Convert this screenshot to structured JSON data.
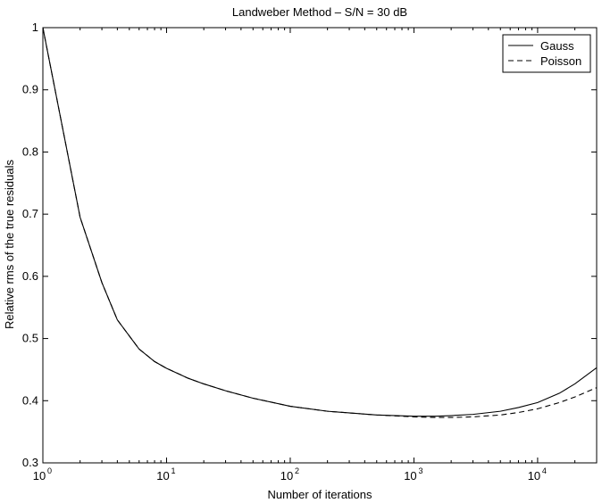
{
  "chart_data": {
    "type": "line",
    "title": "Landweber Method – S/N = 30 dB",
    "xlabel": "Number of iterations",
    "ylabel": "Relative rms of the true residuals",
    "xscale": "log",
    "xlim": [
      1,
      30000
    ],
    "ylim": [
      0.3,
      1.0
    ],
    "xticks": [
      {
        "value": 1,
        "base": "10",
        "exp": "0"
      },
      {
        "value": 10,
        "base": "10",
        "exp": "1"
      },
      {
        "value": 100,
        "base": "10",
        "exp": "2"
      },
      {
        "value": 1000,
        "base": "10",
        "exp": "3"
      },
      {
        "value": 10000,
        "base": "10",
        "exp": "4"
      }
    ],
    "yticks": [
      {
        "value": 0.3,
        "label": "0.3"
      },
      {
        "value": 0.4,
        "label": "0.4"
      },
      {
        "value": 0.5,
        "label": "0.5"
      },
      {
        "value": 0.6,
        "label": "0.6"
      },
      {
        "value": 0.7,
        "label": "0.7"
      },
      {
        "value": 0.8,
        "label": "0.8"
      },
      {
        "value": 0.9,
        "label": "0.9"
      },
      {
        "value": 1.0,
        "label": "1"
      }
    ],
    "grid": false,
    "legend_position": "top-right",
    "series": [
      {
        "name": "Gauss",
        "style": "solid",
        "x": [
          1,
          2,
          3,
          4,
          6,
          8,
          10,
          15,
          20,
          30,
          50,
          100,
          200,
          500,
          1000,
          1500,
          2000,
          3000,
          5000,
          7000,
          10000,
          15000,
          20000,
          30000
        ],
        "y": [
          1.0,
          0.695,
          0.59,
          0.53,
          0.483,
          0.463,
          0.452,
          0.436,
          0.427,
          0.416,
          0.404,
          0.391,
          0.383,
          0.377,
          0.375,
          0.375,
          0.376,
          0.378,
          0.383,
          0.389,
          0.397,
          0.412,
          0.427,
          0.453
        ]
      },
      {
        "name": "Poisson",
        "style": "dashed",
        "x": [
          1,
          2,
          3,
          4,
          6,
          8,
          10,
          15,
          20,
          30,
          50,
          100,
          200,
          500,
          1000,
          1500,
          2000,
          3000,
          5000,
          7000,
          10000,
          15000,
          20000,
          30000
        ],
        "y": [
          1.0,
          0.695,
          0.59,
          0.53,
          0.483,
          0.463,
          0.452,
          0.436,
          0.427,
          0.416,
          0.404,
          0.391,
          0.383,
          0.377,
          0.374,
          0.373,
          0.373,
          0.374,
          0.377,
          0.381,
          0.387,
          0.397,
          0.406,
          0.421
        ]
      }
    ]
  }
}
